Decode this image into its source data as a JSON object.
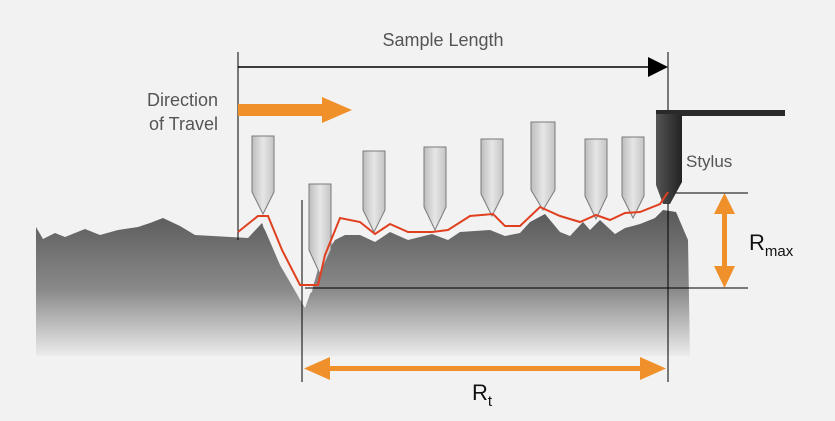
{
  "labels": {
    "sample_length": "Sample Length",
    "direction_line1": "Direction",
    "direction_line2": "of Travel",
    "stylus": "Stylus",
    "rmax_main": "R",
    "rmax_sub": "max",
    "rt_main": "R",
    "rt_sub": "t"
  },
  "colors": {
    "background": "#f2f2f2",
    "arrow": "#f0902a",
    "trace": "#e04020",
    "surface_top": "#595959",
    "surface_bottom": "#e8e8e8",
    "stylus_body": "#d8d8d8",
    "stylus_holder": "#2a2a2a"
  }
}
